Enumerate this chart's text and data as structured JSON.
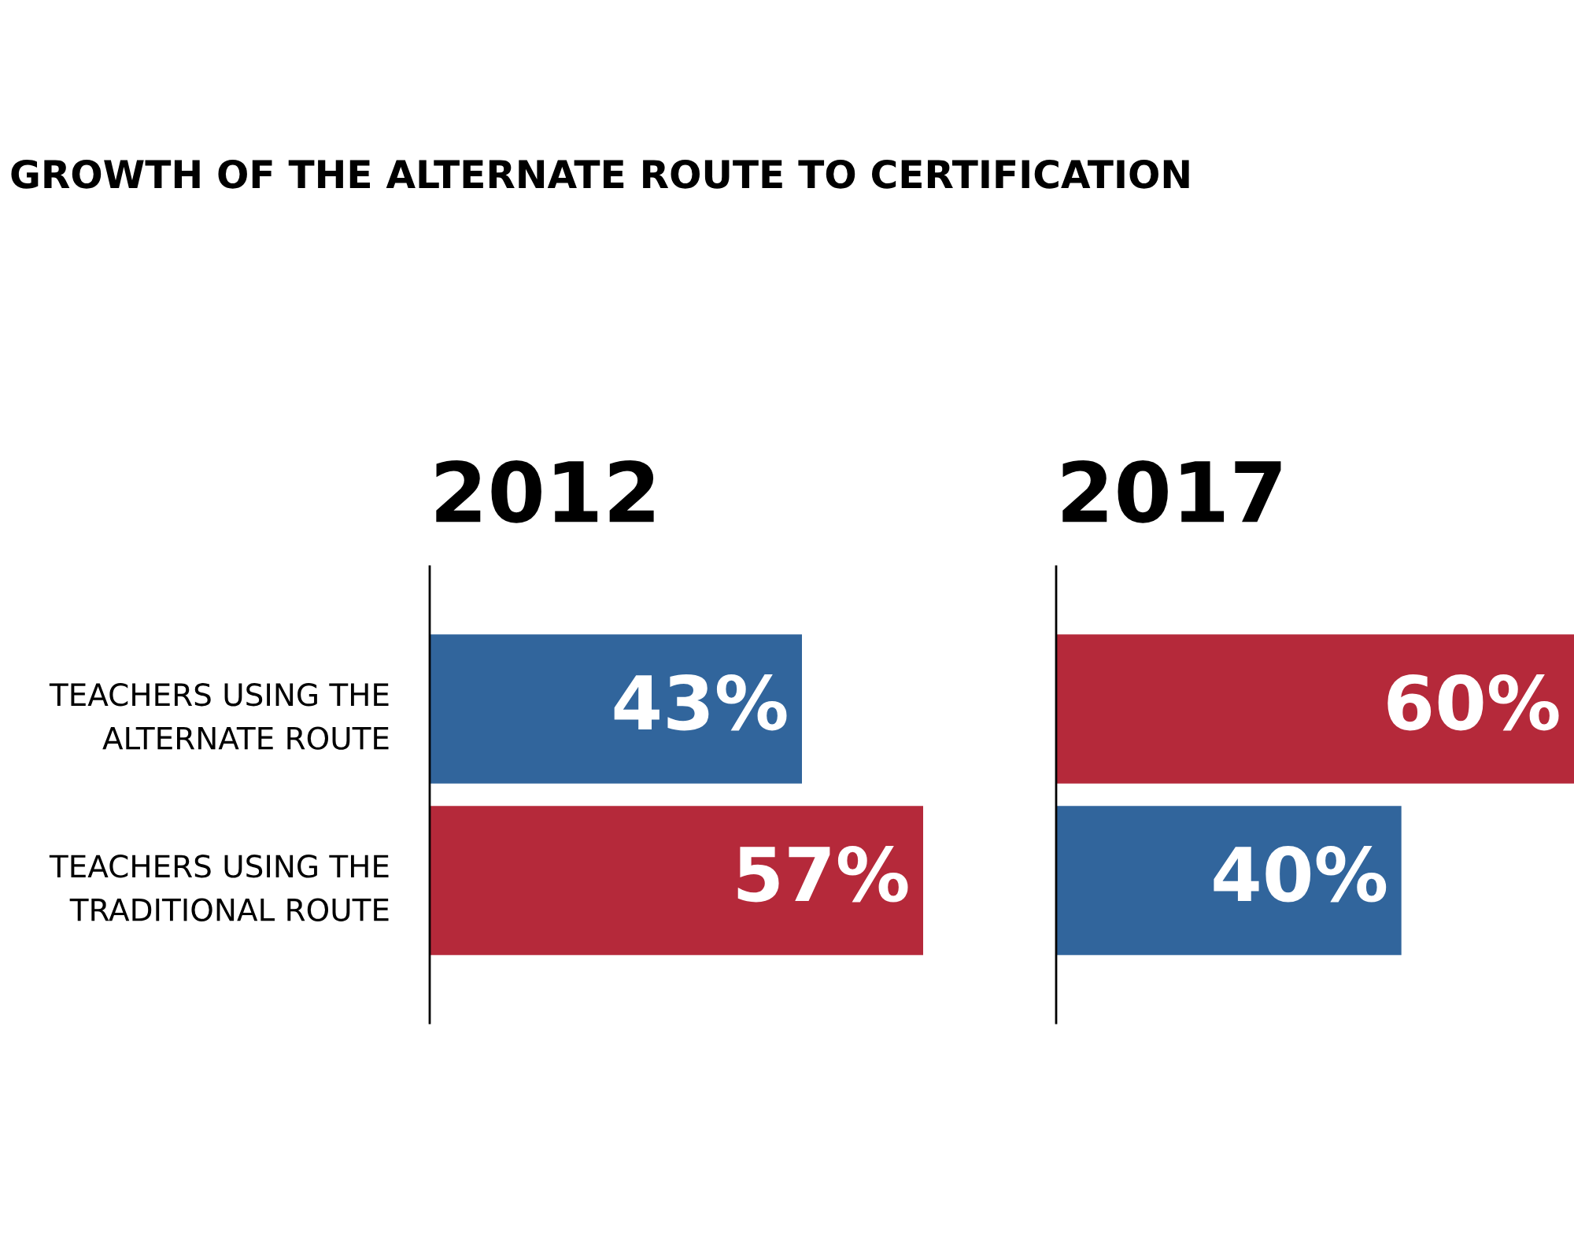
{
  "chart_data": [
    {
      "type": "bar",
      "orientation": "horizontal",
      "title": "GROWTH OF THE ALTERNATE ROUTE TO CERTIFICATION",
      "subtitle": "2012",
      "categories": [
        "TEACHERS USING THE\nALTERNATE ROUTE",
        "TEACHERS USING THE\nTRADITIONAL ROUTE"
      ],
      "values": [
        43,
        57
      ],
      "colors": [
        "#31659c",
        "#b5293a"
      ],
      "value_labels": [
        "43%",
        "57%"
      ],
      "tick_labels": "y",
      "grid": false,
      "legend": false
    },
    {
      "type": "bar",
      "orientation": "horizontal",
      "subtitle": "2017",
      "categories": [
        null,
        null
      ],
      "values": [
        60,
        40
      ],
      "colors": [
        "#b5293a",
        "#31659c"
      ],
      "value_labels": [
        "60%",
        "40%"
      ],
      "tick_labels": false,
      "grid": false,
      "legend": false
    }
  ]
}
